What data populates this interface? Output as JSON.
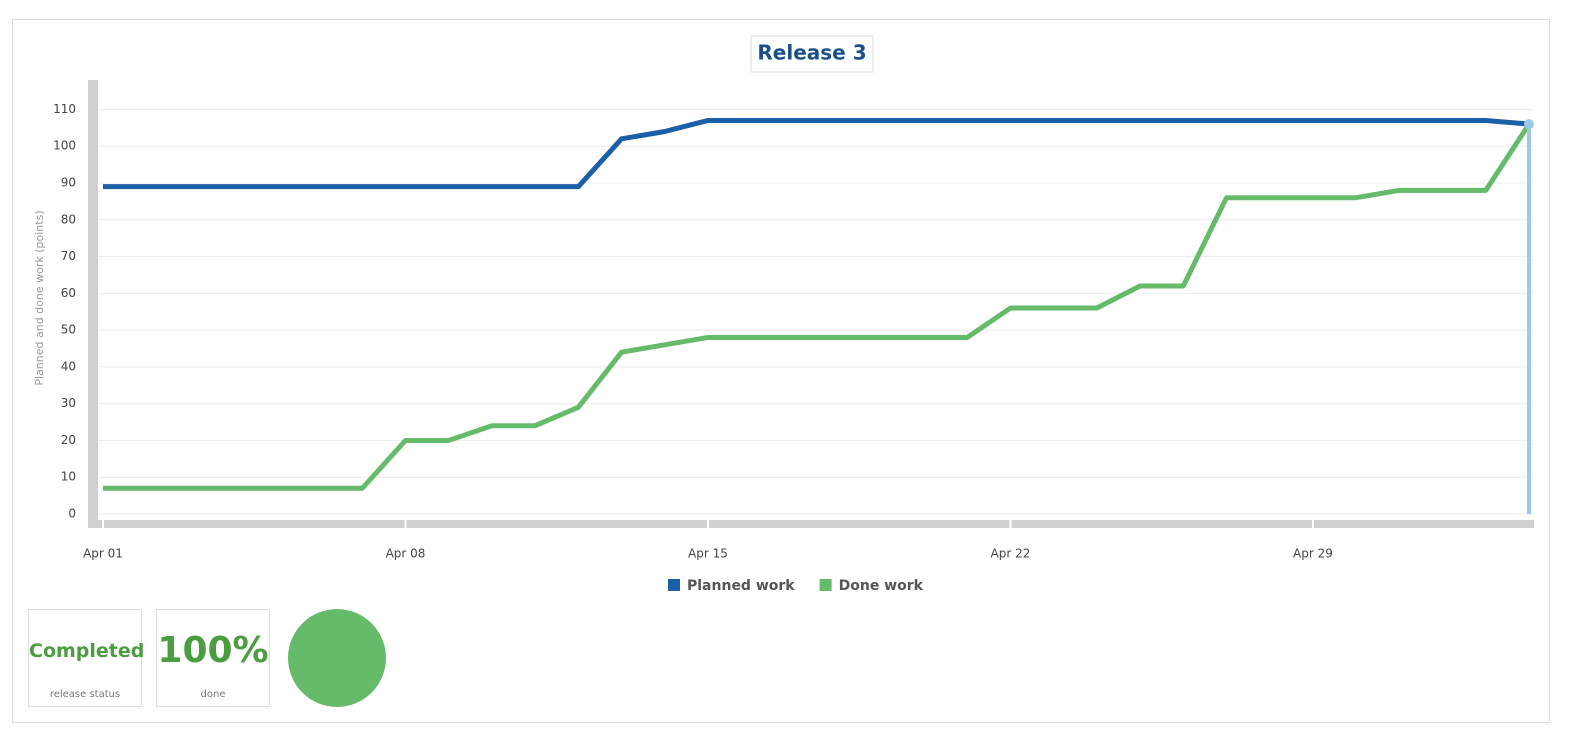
{
  "chart_data": {
    "type": "line",
    "title": "Release 3",
    "y_label": "Planned and done work (points)",
    "categories": [
      "Apr 01",
      null,
      null,
      null,
      null,
      null,
      null,
      "Apr 08",
      null,
      null,
      null,
      null,
      null,
      null,
      "Apr 15",
      null,
      null,
      null,
      null,
      null,
      null,
      "Apr 22",
      null,
      null,
      null,
      null,
      null,
      null,
      "Apr 29",
      null,
      null,
      null,
      null,
      null
    ],
    "series": [
      {
        "name": "Planned work",
        "color": "#1a5fa8",
        "values": [
          89,
          89,
          89,
          89,
          89,
          89,
          89,
          89,
          89,
          89,
          89,
          89,
          102,
          104,
          107,
          107,
          107,
          107,
          107,
          107,
          107,
          107,
          107,
          107,
          107,
          107,
          107,
          107,
          107,
          107,
          107,
          107,
          107,
          106
        ]
      },
      {
        "name": "Done work",
        "color": "#66bb6a",
        "values": [
          7,
          7,
          7,
          7,
          7,
          7,
          7,
          20,
          20,
          24,
          24,
          29,
          44,
          46,
          48,
          48,
          48,
          48,
          48,
          48,
          48,
          56,
          56,
          56,
          62,
          62,
          86,
          86,
          86,
          86,
          88,
          88,
          88,
          106
        ]
      }
    ],
    "ylim": [
      0,
      118
    ],
    "yticks": [
      0,
      10,
      20,
      30,
      40,
      50,
      60,
      70,
      80,
      90,
      100,
      110
    ],
    "grid": true,
    "legend": "bottom"
  },
  "widgets": {
    "status": "Completed",
    "status_label": "release status",
    "done": "100%",
    "done_label": "done"
  }
}
